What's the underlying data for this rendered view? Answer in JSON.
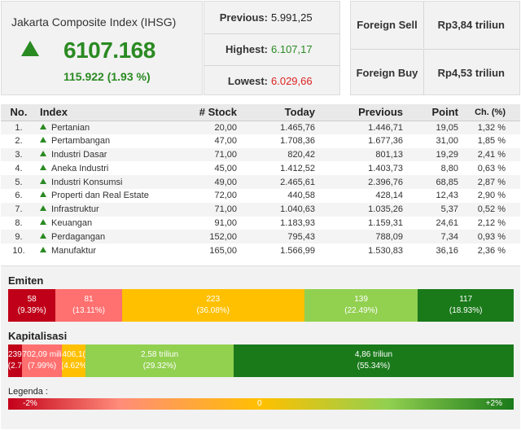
{
  "header": {
    "title": "Jakarta Composite Index (IHSG)",
    "value": "6107.168",
    "change": "115.922 (1.93 %)",
    "previous_label": "Previous:",
    "previous_value": "5.991,25",
    "highest_label": "Highest:",
    "highest_value": "6.107,17",
    "lowest_label": "Lowest:",
    "lowest_value": "6.029,66",
    "foreign_sell_label": "Foreign Sell",
    "foreign_sell_value": "Rp3,84 triliun",
    "foreign_buy_label": "Foreign Buy",
    "foreign_buy_value": "Rp4,53 triliun",
    "colors": {
      "up": "#2a8a22",
      "down": "#dd2222"
    }
  },
  "table": {
    "columns": [
      "No.",
      "Index",
      "# Stock",
      "Today",
      "Previous",
      "Point",
      "Ch. (%)"
    ],
    "rows": [
      {
        "no": "1.",
        "index": "Pertanian",
        "stock": "20,00",
        "today": "1.465,76",
        "previous": "1.446,71",
        "point": "19,05",
        "ch": "1,32 %"
      },
      {
        "no": "2.",
        "index": "Pertambangan",
        "stock": "47,00",
        "today": "1.708,36",
        "previous": "1.677,36",
        "point": "31,00",
        "ch": "1,85 %"
      },
      {
        "no": "3.",
        "index": "Industri Dasar",
        "stock": "71,00",
        "today": "820,42",
        "previous": "801,13",
        "point": "19,29",
        "ch": "2,41 %"
      },
      {
        "no": "4.",
        "index": "Aneka Industri",
        "stock": "45,00",
        "today": "1.412,52",
        "previous": "1.403,73",
        "point": "8,80",
        "ch": "0,63 %"
      },
      {
        "no": "5.",
        "index": "Industri Konsumsi",
        "stock": "49,00",
        "today": "2.465,61",
        "previous": "2.396,76",
        "point": "68,85",
        "ch": "2,87 %"
      },
      {
        "no": "6.",
        "index": "Properti dan Real Estate",
        "stock": "72,00",
        "today": "440,58",
        "previous": "428,14",
        "point": "12,43",
        "ch": "2,90 %"
      },
      {
        "no": "7.",
        "index": "Infrastruktur",
        "stock": "71,00",
        "today": "1.040,63",
        "previous": "1.035,26",
        "point": "5,37",
        "ch": "0,52 %"
      },
      {
        "no": "8.",
        "index": "Keuangan",
        "stock": "91,00",
        "today": "1.183,93",
        "previous": "1.159,31",
        "point": "24,61",
        "ch": "2,12 %"
      },
      {
        "no": "9.",
        "index": "Perdagangan",
        "stock": "152,00",
        "today": "795,43",
        "previous": "788,09",
        "point": "7,34",
        "ch": "0,93 %"
      },
      {
        "no": "10.",
        "index": "Manufaktur",
        "stock": "165,00",
        "today": "1.566,99",
        "previous": "1.530,83",
        "point": "36,16",
        "ch": "2,36 %"
      }
    ]
  },
  "emiten": {
    "title": "Emiten",
    "segments": [
      {
        "value": "58",
        "pct": "(9.39%)",
        "share": 9.39,
        "color": "#c00018"
      },
      {
        "value": "81",
        "pct": "(13.11%)",
        "share": 13.11,
        "color": "#ff7070"
      },
      {
        "value": "223",
        "pct": "(36.08%)",
        "share": 36.08,
        "color": "#ffc000"
      },
      {
        "value": "139",
        "pct": "(22.49%)",
        "share": 22.49,
        "color": "#92d050"
      },
      {
        "value": "117",
        "pct": "(18.93%)",
        "share": 18.93,
        "color": "#1a7a1a"
      }
    ]
  },
  "kapitalisasi": {
    "title": "Kapitalisasi",
    "segments": [
      {
        "value": "239",
        "pct": "(2.7",
        "share": 2.7,
        "color": "#c00018"
      },
      {
        "value": "702,09 mili",
        "pct": "(7.99%)",
        "share": 7.99,
        "color": "#ff7070"
      },
      {
        "value": "406,1(",
        "pct": "(4.62%",
        "share": 4.62,
        "color": "#ffc000"
      },
      {
        "value": "2,58 triliun",
        "pct": "(29.32%)",
        "share": 29.32,
        "color": "#92d050"
      },
      {
        "value": "4,86 triliun",
        "pct": "(55.34%)",
        "share": 55.34,
        "color": "#1a7a1a"
      }
    ]
  },
  "legend": {
    "title": "Legenda :",
    "min": "-2%",
    "mid": "0",
    "max": "+2%"
  }
}
